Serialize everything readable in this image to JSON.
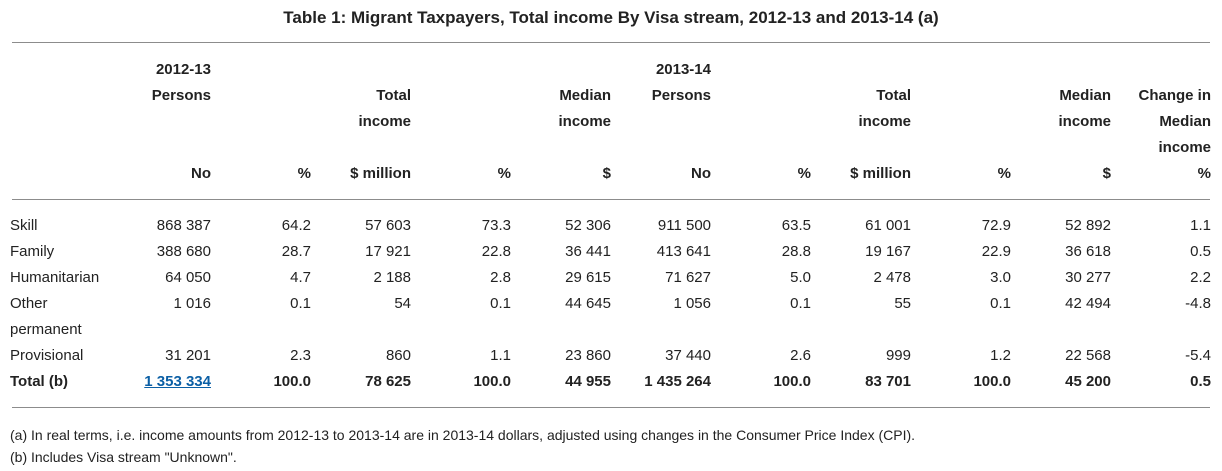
{
  "title": "Table 1: Migrant Taxpayers, Total income By Visa stream, 2012-13 and 2013-14 (a)",
  "header": {
    "year_2012": "2012-13",
    "year_2013": "2013-14",
    "persons": "Persons",
    "total": "Total",
    "income": "income",
    "median": "Median",
    "change_in": "Change in",
    "units": {
      "no": "No",
      "pct": "%",
      "million": "$ million",
      "dollar": "$"
    }
  },
  "rows": [
    {
      "label": "Skill",
      "c": [
        "868 387",
        "64.2",
        "57 603",
        "73.3",
        "52 306",
        "911 500",
        "63.5",
        "61 001",
        "72.9",
        "52 892",
        "1.1"
      ]
    },
    {
      "label": "Family",
      "c": [
        "388 680",
        "28.7",
        "17 921",
        "22.8",
        "36 441",
        "413 641",
        "28.8",
        "19 167",
        "22.9",
        "36 618",
        "0.5"
      ]
    },
    {
      "label": "Humanitarian",
      "c": [
        "64 050",
        "4.7",
        "2 188",
        "2.8",
        "29 615",
        "71 627",
        "5.0",
        "2 478",
        "3.0",
        "30 277",
        "2.2"
      ]
    },
    {
      "label": "Other",
      "label2": "permanent",
      "c": [
        "1 016",
        "0.1",
        "54",
        "0.1",
        "44 645",
        "1 056",
        "0.1",
        "55",
        "0.1",
        "42 494",
        "-4.8"
      ]
    },
    {
      "label": "Provisional",
      "c": [
        "31 201",
        "2.3",
        "860",
        "1.1",
        "23 860",
        "37 440",
        "2.6",
        "999",
        "1.2",
        "22 568",
        "-5.4"
      ]
    }
  ],
  "total": {
    "label": "Total (b)",
    "c": [
      "1 353 334",
      "100.0",
      "78 625",
      "100.0",
      "44 955",
      "1 435 264",
      "100.0",
      "83 701",
      "100.0",
      "45 200",
      "0.5"
    ]
  },
  "notes": [
    "(a) In real terms, i.e. income amounts from 2012-13 to 2013-14 are in 2013-14 dollars, adjusted using changes in the Consumer Price Index (CPI).",
    "(b) Includes Visa stream \"Unknown\"."
  ]
}
